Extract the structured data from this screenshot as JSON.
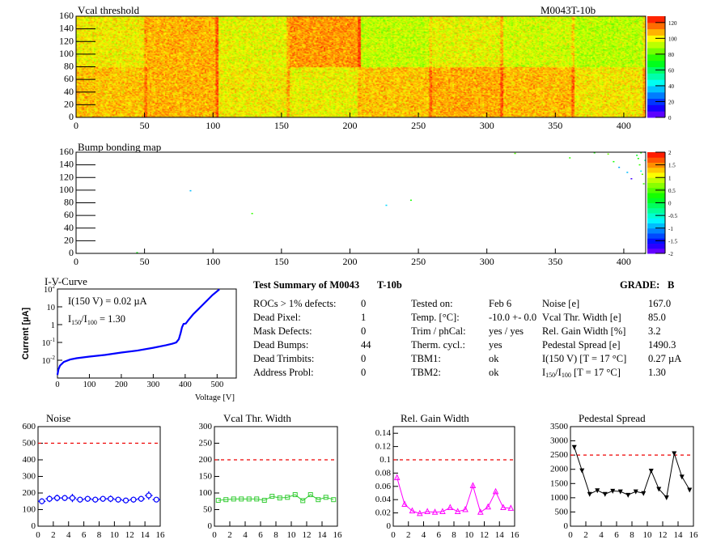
{
  "header": {
    "module_id": "M0043T-10b"
  },
  "summary": {
    "title": "Test Summary of M0043",
    "test": "T-10b",
    "grade_label": "GRADE:",
    "grade": "B",
    "col1": [
      {
        "label": "ROCs > 1% defects:",
        "value": "0"
      },
      {
        "label": "Dead Pixel:",
        "value": "1"
      },
      {
        "label": "Mask Defects:",
        "value": "0"
      },
      {
        "label": "Dead Bumps:",
        "value": "44"
      },
      {
        "label": "Dead Trimbits:",
        "value": "0"
      },
      {
        "label": "Address Probl:",
        "value": "0"
      }
    ],
    "col2": [
      {
        "label": "Tested on:",
        "value": "Feb 6"
      },
      {
        "label": "Temp. [°C]:",
        "value": "-10.0 +- 0.0"
      },
      {
        "label": "Trim / phCal:",
        "value": "yes / yes"
      },
      {
        "label": "Therm. cycl.:",
        "value": "yes"
      },
      {
        "label": "TBM1:",
        "value": "ok"
      },
      {
        "label": "TBM2:",
        "value": "ok"
      }
    ],
    "col3": [
      {
        "label": "Noise [e]",
        "value": "167.0"
      },
      {
        "label": "Vcal Thr. Width [e]",
        "value": "85.0"
      },
      {
        "label": "Rel. Gain Width [%]",
        "value": "3.2"
      },
      {
        "label": "Pedestal Spread [e]",
        "value": "1490.3"
      },
      {
        "label": "I(150 V) [T = 17 °C]",
        "value": "0.27 µA"
      },
      {
        "label_parts": [
          "I",
          "150",
          "/I",
          "100",
          "  [T = 17 °C]"
        ],
        "value": "1.30"
      }
    ]
  },
  "chart_data": [
    {
      "type": "heatmap",
      "title": "Vcal threshold",
      "xlim": [
        0,
        416
      ],
      "ylim": [
        0,
        160
      ],
      "zlim": [
        0,
        128
      ],
      "xticks": [
        "0",
        "50",
        "100",
        "150",
        "200",
        "250",
        "300",
        "350",
        "400"
      ],
      "yticks": [
        "0",
        "20",
        "40",
        "60",
        "80",
        "100",
        "120",
        "140",
        "160"
      ],
      "zticks": [
        "0",
        "20",
        "40",
        "60",
        "80",
        "100",
        "120"
      ],
      "roc_grid": {
        "cols": 8,
        "rows": 2,
        "roc_width": 52,
        "roc_height": 80
      },
      "roc_means_bottom_row": [
        106,
        108,
        100,
        99,
        106,
        109,
        107,
        101
      ],
      "roc_means_top_row": [
        100,
        108,
        98,
        111,
        93,
        98,
        95,
        92
      ]
    },
    {
      "type": "heatmap",
      "title": "Bump bonding map",
      "xlim": [
        0,
        416
      ],
      "ylim": [
        0,
        160
      ],
      "zlim": [
        -2,
        2
      ],
      "xticks": [
        "0",
        "50",
        "100",
        "150",
        "200",
        "250",
        "300",
        "350",
        "400"
      ],
      "yticks": [
        "0",
        "20",
        "40",
        "60",
        "80",
        "100",
        "120",
        "140",
        "160"
      ],
      "zticks": [
        "-2",
        "-1.5",
        "-1",
        "-0.5",
        "0",
        "0.5",
        "1",
        "1.5",
        "2"
      ],
      "points": [
        [
          44,
          1,
          0.2
        ],
        [
          83,
          99,
          -0.9
        ],
        [
          128,
          63,
          0.4
        ],
        [
          226,
          76,
          -0.8
        ],
        [
          244,
          84,
          0.3
        ],
        [
          320,
          158,
          0.5
        ],
        [
          360,
          151,
          0.4
        ],
        [
          378,
          159,
          0.3
        ],
        [
          388,
          157,
          0.6
        ],
        [
          392,
          145,
          0.3
        ],
        [
          396,
          136,
          -1.0
        ],
        [
          402,
          128,
          -0.9
        ],
        [
          405,
          118,
          -1.8
        ],
        [
          409,
          155,
          0.1
        ],
        [
          410,
          150,
          0.3
        ],
        [
          411,
          140,
          0.4
        ],
        [
          412,
          130,
          -0.6
        ],
        [
          413,
          125,
          0.5
        ],
        [
          414,
          110,
          0.4
        ],
        [
          415,
          160,
          -1.1
        ],
        [
          415,
          147,
          -0.3
        ],
        [
          412,
          159,
          0.3
        ],
        [
          415,
          0,
          0.3
        ]
      ]
    },
    {
      "type": "line",
      "title": "I-V-Curve",
      "xlabel": "Voltage [V]",
      "ylabel": "Current [µA]",
      "xlim": [
        0,
        560
      ],
      "ylim": [
        0.001,
        100
      ],
      "yscale": "log",
      "xticks": [
        "0",
        "100",
        "200",
        "300",
        "400",
        "500"
      ],
      "yticks": [
        {
          "base": "10",
          "exp": "-2",
          "v": 0.01
        },
        {
          "base": "10",
          "exp": "-1",
          "v": 0.1
        },
        {
          "base": "1",
          "exp": "",
          "v": 1
        },
        {
          "base": "10",
          "exp": "",
          "v": 10
        },
        {
          "base": "10",
          "exp": "2",
          "v": 100
        }
      ],
      "annotations": {
        "i150": "I(150 V) = 0.02 µA",
        "ratio_parts": [
          "I",
          "150",
          "/I",
          "100",
          " =  1.30"
        ]
      },
      "x": [
        0,
        3,
        8,
        20,
        40,
        60,
        100,
        150,
        200,
        250,
        300,
        340,
        360,
        372,
        380,
        386,
        390,
        395,
        402,
        410,
        425,
        440,
        455,
        470,
        485,
        500,
        507
      ],
      "y": [
        0.0015,
        0.003,
        0.005,
        0.008,
        0.011,
        0.013,
        0.016,
        0.02,
        0.027,
        0.035,
        0.05,
        0.07,
        0.085,
        0.1,
        0.15,
        0.35,
        0.7,
        1.1,
        1.15,
        1.8,
        3.8,
        7,
        13,
        24,
        45,
        75,
        95
      ],
      "color": "#0000ff"
    },
    {
      "type": "scatter",
      "title": "Noise",
      "xlim": [
        0,
        16
      ],
      "ylim": [
        0,
        600
      ],
      "xticks": [
        "0",
        "2",
        "4",
        "6",
        "8",
        "10",
        "12",
        "14",
        "16"
      ],
      "yticks": [
        "0",
        "100",
        "200",
        "300",
        "400",
        "500",
        "600"
      ],
      "x": [
        0.5,
        1.5,
        2.5,
        3.5,
        4.5,
        5.5,
        6.5,
        7.5,
        8.5,
        9.5,
        10.5,
        11.5,
        12.5,
        13.5,
        14.5,
        15.5
      ],
      "values": [
        150,
        165,
        170,
        170,
        170,
        160,
        165,
        160,
        165,
        165,
        160,
        155,
        160,
        165,
        185,
        160
      ],
      "errors": [
        18,
        20,
        20,
        18,
        25,
        18,
        18,
        18,
        18,
        20,
        18,
        15,
        18,
        18,
        25,
        15
      ],
      "threshold": 500,
      "color": "#0000ff",
      "marker": "circle"
    },
    {
      "type": "line",
      "title": "Vcal Thr. Width",
      "xlim": [
        0,
        16
      ],
      "ylim": [
        0,
        300
      ],
      "xticks": [
        "0",
        "2",
        "4",
        "6",
        "8",
        "10",
        "12",
        "14",
        "16"
      ],
      "yticks": [
        "0",
        "50",
        "100",
        "150",
        "200",
        "250",
        "300"
      ],
      "x": [
        0.5,
        1.5,
        2.5,
        3.5,
        4.5,
        5.5,
        6.5,
        7.5,
        8.5,
        9.5,
        10.5,
        11.5,
        12.5,
        13.5,
        14.5,
        15.5
      ],
      "values": [
        78,
        80,
        82,
        82,
        82,
        82,
        78,
        90,
        85,
        87,
        95,
        77,
        95,
        80,
        87,
        80
      ],
      "threshold": 200,
      "color": "#33cc33",
      "marker": "square"
    },
    {
      "type": "line",
      "title": "Rel. Gain Width",
      "xlim": [
        0,
        16
      ],
      "ylim": [
        0,
        0.15
      ],
      "xticks": [
        "0",
        "2",
        "4",
        "6",
        "8",
        "10",
        "12",
        "14",
        "16"
      ],
      "yticks": [
        "0",
        "0.02",
        "0.04",
        "0.06",
        "0.08",
        "0.1",
        "0.12",
        "0.14"
      ],
      "x": [
        0.5,
        1.5,
        2.5,
        3.5,
        4.5,
        5.5,
        6.5,
        7.5,
        8.5,
        9.5,
        10.5,
        11.5,
        12.5,
        13.5,
        14.5,
        15.5
      ],
      "values": [
        0.073,
        0.033,
        0.023,
        0.019,
        0.022,
        0.021,
        0.022,
        0.028,
        0.022,
        0.025,
        0.061,
        0.021,
        0.029,
        0.052,
        0.028,
        0.027
      ],
      "threshold": 0.1,
      "color": "#ff00ff",
      "marker": "triangle-up"
    },
    {
      "type": "line",
      "title": "Pedestal Spread",
      "xlim": [
        0,
        16
      ],
      "ylim": [
        0,
        3500
      ],
      "xticks": [
        "0",
        "2",
        "4",
        "6",
        "8",
        "10",
        "12",
        "14",
        "16"
      ],
      "yticks": [
        "0",
        "500",
        "1000",
        "1500",
        "2000",
        "2500",
        "3000",
        "3500"
      ],
      "x": [
        0.5,
        1.5,
        2.5,
        3.5,
        4.5,
        5.5,
        6.5,
        7.5,
        8.5,
        9.5,
        10.5,
        11.5,
        12.5,
        13.5,
        14.5,
        15.5
      ],
      "values": [
        2780,
        1960,
        1130,
        1260,
        1130,
        1240,
        1220,
        1100,
        1220,
        1160,
        1950,
        1310,
        1010,
        2560,
        1740,
        1280
      ],
      "threshold": 2500,
      "color": "#000000",
      "marker": "triangle-down"
    }
  ]
}
